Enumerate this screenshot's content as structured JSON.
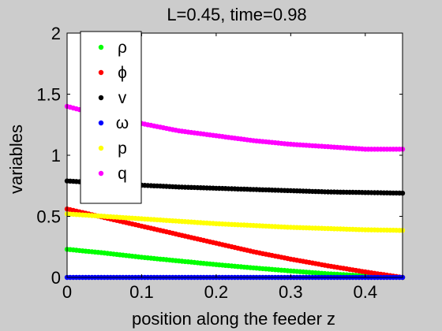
{
  "chart_data": {
    "type": "scatter",
    "title": "L=0.45, time=0.98",
    "xlabel": "position along the feeder z",
    "ylabel": "variables",
    "xlim": [
      0,
      0.45
    ],
    "ylim": [
      0,
      2
    ],
    "x_ticks": [
      "0",
      "0.1",
      "0.2",
      "0.3",
      "0.4"
    ],
    "y_ticks": [
      "0",
      "0.5",
      "1",
      "1.5",
      "2"
    ],
    "grid": false,
    "legend_position": "top-left",
    "background_color": "#cccccc",
    "plot_color": "#ffffff",
    "series": [
      {
        "name": "ρ",
        "color": "#00ff00",
        "x": [
          0,
          0.05,
          0.1,
          0.15,
          0.2,
          0.25,
          0.3,
          0.35,
          0.4,
          0.45
        ],
        "values": [
          0.23,
          0.2,
          0.165,
          0.135,
          0.105,
          0.078,
          0.053,
          0.03,
          0.012,
          0.0
        ]
      },
      {
        "name": "ϕ",
        "color": "#ff0000",
        "x": [
          0,
          0.05,
          0.1,
          0.15,
          0.2,
          0.25,
          0.3,
          0.35,
          0.4,
          0.45
        ],
        "values": [
          0.56,
          0.49,
          0.42,
          0.35,
          0.28,
          0.21,
          0.15,
          0.095,
          0.045,
          0.0
        ]
      },
      {
        "name": "v",
        "color": "#000000",
        "x": [
          0,
          0.05,
          0.1,
          0.15,
          0.2,
          0.25,
          0.3,
          0.35,
          0.4,
          0.45
        ],
        "values": [
          0.79,
          0.77,
          0.755,
          0.74,
          0.73,
          0.72,
          0.71,
          0.7,
          0.695,
          0.69
        ]
      },
      {
        "name": "ω",
        "color": "#0000ff",
        "x": [
          0,
          0.05,
          0.1,
          0.15,
          0.2,
          0.25,
          0.3,
          0.35,
          0.4,
          0.45
        ],
        "values": [
          0,
          0,
          0,
          0,
          0,
          0,
          0,
          0,
          0,
          0
        ]
      },
      {
        "name": "p",
        "color": "#ffff00",
        "x": [
          0,
          0.05,
          0.1,
          0.15,
          0.2,
          0.25,
          0.3,
          0.35,
          0.4,
          0.45
        ],
        "values": [
          0.52,
          0.5,
          0.48,
          0.46,
          0.44,
          0.425,
          0.41,
          0.4,
          0.39,
          0.385
        ]
      },
      {
        "name": "q",
        "color": "#ff00ff",
        "x": [
          0,
          0.05,
          0.1,
          0.15,
          0.2,
          0.25,
          0.3,
          0.35,
          0.4,
          0.45
        ],
        "values": [
          1.4,
          1.32,
          1.26,
          1.2,
          1.16,
          1.12,
          1.09,
          1.07,
          1.05,
          1.05
        ]
      }
    ]
  }
}
